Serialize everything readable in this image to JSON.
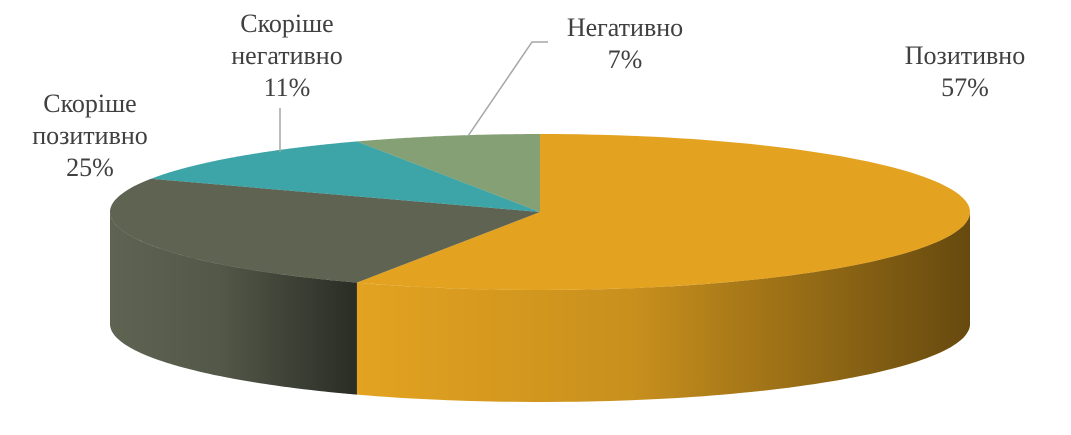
{
  "chart_data": {
    "type": "pie",
    "categories": [
      "Позитивно",
      "Скоріше позитивно",
      "Скоріше негативно",
      "Негативно"
    ],
    "values": [
      57,
      25,
      11,
      7
    ],
    "value_labels": [
      "57%",
      "25%",
      "11%",
      "7%"
    ],
    "colors": [
      "#E3A321",
      "#5E6352",
      "#3DA5A8",
      "#84A074"
    ]
  }
}
